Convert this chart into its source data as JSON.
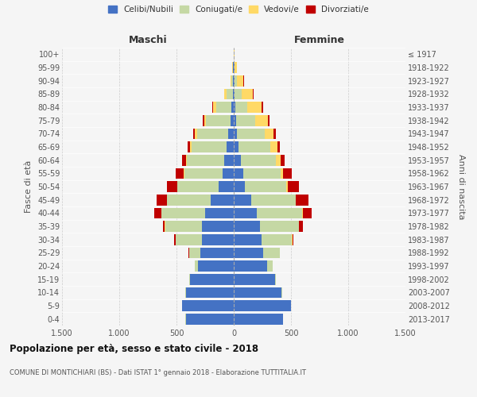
{
  "age_groups": [
    "0-4",
    "5-9",
    "10-14",
    "15-19",
    "20-24",
    "25-29",
    "30-34",
    "35-39",
    "40-44",
    "45-49",
    "50-54",
    "55-59",
    "60-64",
    "65-69",
    "70-74",
    "75-79",
    "80-84",
    "85-89",
    "90-94",
    "95-99",
    "100+"
  ],
  "birth_years": [
    "2013-2017",
    "2008-2012",
    "2003-2007",
    "1998-2002",
    "1993-1997",
    "1988-1992",
    "1983-1987",
    "1978-1982",
    "1973-1977",
    "1968-1972",
    "1963-1967",
    "1958-1962",
    "1953-1957",
    "1948-1952",
    "1943-1947",
    "1938-1942",
    "1933-1937",
    "1928-1932",
    "1923-1927",
    "1918-1922",
    "≤ 1917"
  ],
  "maschi": {
    "celibi": [
      420,
      450,
      420,
      380,
      310,
      290,
      280,
      280,
      250,
      200,
      130,
      100,
      80,
      60,
      50,
      30,
      20,
      10,
      5,
      5,
      2
    ],
    "coniugati": [
      2,
      3,
      3,
      10,
      30,
      100,
      230,
      320,
      380,
      380,
      360,
      330,
      330,
      310,
      270,
      210,
      130,
      50,
      15,
      5,
      1
    ],
    "vedovi": [
      0,
      0,
      0,
      0,
      0,
      0,
      0,
      1,
      1,
      2,
      3,
      5,
      10,
      15,
      20,
      20,
      30,
      20,
      10,
      2,
      0
    ],
    "divorziati": [
      0,
      0,
      0,
      0,
      2,
      5,
      10,
      20,
      60,
      90,
      90,
      70,
      30,
      20,
      15,
      10,
      5,
      0,
      0,
      0,
      0
    ]
  },
  "femmine": {
    "nubili": [
      430,
      500,
      420,
      360,
      290,
      260,
      240,
      230,
      200,
      150,
      100,
      80,
      60,
      40,
      30,
      20,
      15,
      10,
      5,
      5,
      2
    ],
    "coniugate": [
      2,
      3,
      3,
      10,
      50,
      140,
      270,
      340,
      400,
      390,
      360,
      330,
      310,
      280,
      240,
      170,
      100,
      60,
      20,
      5,
      1
    ],
    "vedove": [
      0,
      0,
      0,
      0,
      0,
      0,
      1,
      2,
      3,
      5,
      10,
      20,
      40,
      60,
      80,
      110,
      130,
      100,
      60,
      20,
      2
    ],
    "divorziate": [
      0,
      0,
      0,
      0,
      2,
      5,
      10,
      30,
      80,
      110,
      100,
      80,
      35,
      25,
      20,
      15,
      10,
      5,
      5,
      0,
      0
    ]
  },
  "colors": {
    "celibi_nubili": "#4472C4",
    "coniugati": "#C5D8A4",
    "vedovi": "#FFD966",
    "divorziati": "#C00000"
  },
  "title": "Popolazione per età, sesso e stato civile - 2018",
  "subtitle": "COMUNE DI MONTICHIARI (BS) - Dati ISTAT 1° gennaio 2018 - Elaborazione TUTTITALIA.IT",
  "xlabel_left": "Maschi",
  "xlabel_right": "Femmine",
  "ylabel_left": "Fasce di età",
  "ylabel_right": "Anni di nascita",
  "xlim": 1500,
  "bg_color": "#f5f5f5",
  "grid_color": "#cccccc"
}
